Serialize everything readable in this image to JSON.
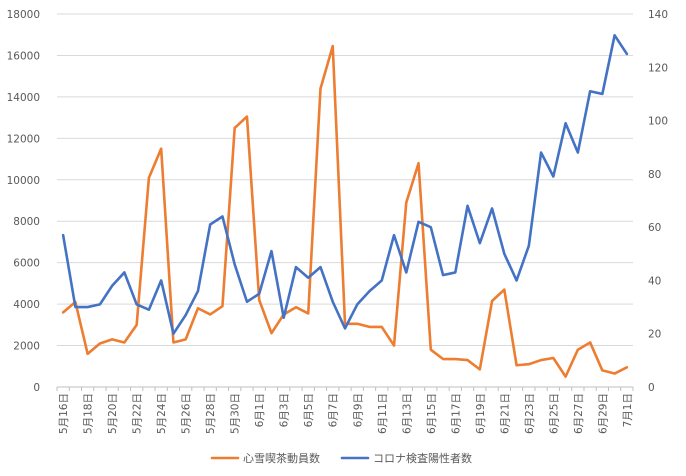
{
  "chart_data": {
    "type": "line",
    "x": [
      "5月16日",
      "5月17日",
      "5月18日",
      "5月19日",
      "5月20日",
      "5月21日",
      "5月22日",
      "5月23日",
      "5月24日",
      "5月25日",
      "5月26日",
      "5月27日",
      "5月28日",
      "5月29日",
      "5月30日",
      "5月31日",
      "6月1日",
      "6月2日",
      "6月3日",
      "6月4日",
      "6月5日",
      "6月6日",
      "6月7日",
      "6月8日",
      "6月9日",
      "6月10日",
      "6月11日",
      "6月12日",
      "6月13日",
      "6月14日",
      "6月15日",
      "6月16日",
      "6月17日",
      "6月18日",
      "6月19日",
      "6月20日",
      "6月21日",
      "6月22日",
      "6月23日",
      "6月24日",
      "6月25日",
      "6月26日",
      "6月27日",
      "6月28日",
      "6月29日",
      "6月30日",
      "7月1日"
    ],
    "x_tick_labels": [
      "5月16日",
      "5月18日",
      "5月20日",
      "5月22日",
      "5月24日",
      "5月26日",
      "5月28日",
      "5月30日",
      "6月1日",
      "6月3日",
      "6月5日",
      "6月7日",
      "6月9日",
      "6月11日",
      "6月13日",
      "6月15日",
      "6月17日",
      "6月19日",
      "6月21日",
      "6月23日",
      "6月25日",
      "6月27日",
      "6月29日",
      "7月1日"
    ],
    "y_left": {
      "ylim": [
        0,
        18000
      ],
      "ticks": [
        "0",
        "2000",
        "4000",
        "6000",
        "8000",
        "10000",
        "12000",
        "14000",
        "16000",
        "18000"
      ]
    },
    "y_right": {
      "ylim": [
        0,
        140
      ],
      "ticks": [
        "0",
        "20",
        "40",
        "60",
        "80",
        "100",
        "120",
        "140"
      ]
    },
    "series": [
      {
        "name": "心雪喫茶動員数",
        "axis": "left",
        "color": "#ED7D31",
        "values": [
          3600,
          4100,
          1600,
          2100,
          2300,
          2150,
          3000,
          10100,
          11500,
          2150,
          2300,
          3800,
          3500,
          3900,
          12500,
          13050,
          4200,
          2600,
          3500,
          3850,
          3550,
          14400,
          16450,
          3050,
          3050,
          2900,
          2900,
          2000,
          8900,
          10800,
          1800,
          1350,
          1350,
          1300,
          850,
          4150,
          4700,
          1050,
          1100,
          1300,
          1400,
          500,
          1800,
          2150,
          800,
          650,
          950
        ]
      },
      {
        "name": "コロナ検査陽性者数",
        "axis": "right",
        "color": "#4472C4",
        "values": [
          57,
          30,
          30,
          31,
          38,
          43,
          31,
          29,
          40,
          20,
          27,
          36,
          61,
          64,
          46,
          32,
          35,
          51,
          26,
          45,
          41,
          45,
          32,
          22,
          31,
          36,
          40,
          57,
          43,
          62,
          60,
          42,
          43,
          68,
          54,
          67,
          50,
          40,
          53,
          88,
          79,
          99,
          88,
          111,
          110,
          132,
          125
        ]
      }
    ],
    "legend_position": "bottom",
    "grid": "horizontal"
  }
}
